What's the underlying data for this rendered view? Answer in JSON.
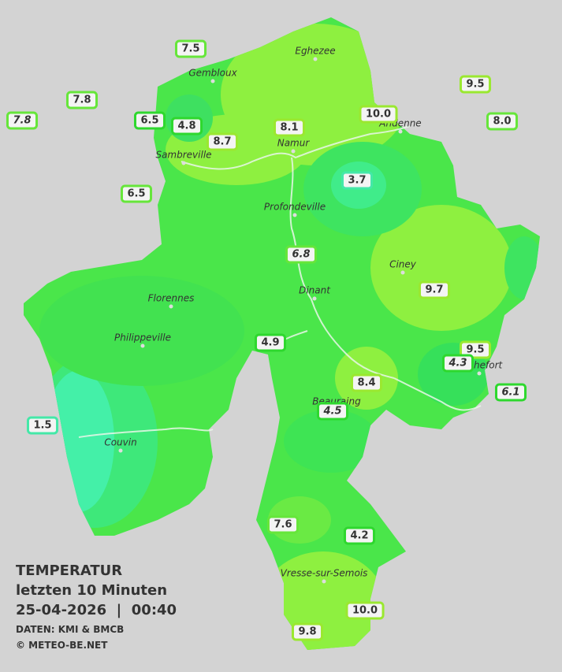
{
  "towns": [
    {
      "label": "Eghezee"
    },
    {
      "label": "Gembloux"
    },
    {
      "label": "Andenne"
    },
    {
      "label": "Namur"
    },
    {
      "label": "Sambreville"
    },
    {
      "label": "Profondeville"
    },
    {
      "label": "Ciney"
    },
    {
      "label": "Dinant"
    },
    {
      "label": "Florennes"
    },
    {
      "label": "Philippeville"
    },
    {
      "label": "Rochefort"
    },
    {
      "label": "Beauraing"
    },
    {
      "label": "Couvin"
    },
    {
      "label": "Vresse-sur-Semois"
    }
  ],
  "stations": [
    {
      "label": "7.5"
    },
    {
      "label": "7.8"
    },
    {
      "label": "7.8"
    },
    {
      "label": "6.5"
    },
    {
      "label": "4.8"
    },
    {
      "label": "8.7"
    },
    {
      "label": "8.1"
    },
    {
      "label": "10.0"
    },
    {
      "label": "9.5"
    },
    {
      "label": "8.0"
    },
    {
      "label": "6.5"
    },
    {
      "label": "3.7"
    },
    {
      "label": "6.8"
    },
    {
      "label": "9.7"
    },
    {
      "label": "4.9"
    },
    {
      "label": "9.5"
    },
    {
      "label": "4.3"
    },
    {
      "label": "6.1"
    },
    {
      "label": "8.4"
    },
    {
      "label": "4.5"
    },
    {
      "label": "1.5"
    },
    {
      "label": "7.6"
    },
    {
      "label": "4.2"
    },
    {
      "label": "10.0"
    },
    {
      "label": "9.8"
    }
  ],
  "legend": {
    "title": "TEMPERATUR",
    "period": "letzten 10 Minuten",
    "datetime": "25-04-2026  |  00:40",
    "source": "DATEN: KMI & BMCB",
    "copyright": "© METEO-BE.NET"
  }
}
